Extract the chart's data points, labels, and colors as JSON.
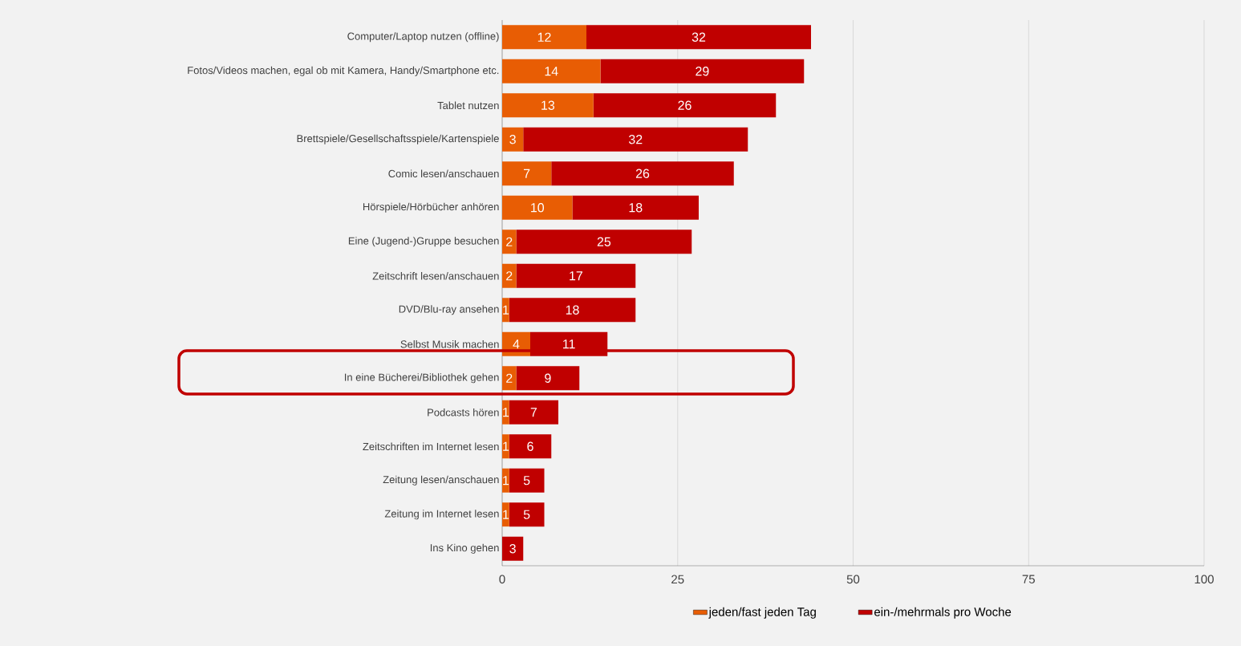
{
  "chart_data": {
    "type": "bar",
    "orientation": "horizontal",
    "stacked": true,
    "categories": [
      "Computer/Laptop nutzen (offline)",
      "Fotos/Videos machen, egal ob mit Kamera, Handy/Smartphone etc.",
      "Tablet nutzen",
      "Brettspiele/Gesellschaftsspiele/Kartenspiele",
      "Comic lesen/anschauen",
      "Hörspiele/Hörbücher anhören",
      "Eine (Jugend-)Gruppe besuchen",
      "Zeitschrift lesen/anschauen",
      "DVD/Blu-ray ansehen",
      "Selbst Musik machen",
      "In eine Bücherei/Bibliothek gehen",
      "Podcasts hören",
      "Zeitschriften im Internet lesen",
      "Zeitung lesen/anschauen",
      "Zeitung im Internet lesen",
      "Ins Kino gehen"
    ],
    "series": [
      {
        "name": "jeden/fast jeden Tag",
        "color": "#e85d04",
        "values": [
          12,
          14,
          13,
          3,
          7,
          10,
          2,
          2,
          1,
          4,
          2,
          1,
          1,
          1,
          1,
          null
        ]
      },
      {
        "name": "ein-/mehrmals pro Woche",
        "color": "#c00000",
        "values": [
          32,
          29,
          26,
          32,
          26,
          18,
          25,
          17,
          18,
          11,
          9,
          7,
          6,
          5,
          5,
          3
        ]
      }
    ],
    "xlim": [
      0,
      100
    ],
    "xticks": [
      0,
      25,
      50,
      75,
      100
    ],
    "grid": "x",
    "legend": "bottom",
    "data_labels": true
  }
}
